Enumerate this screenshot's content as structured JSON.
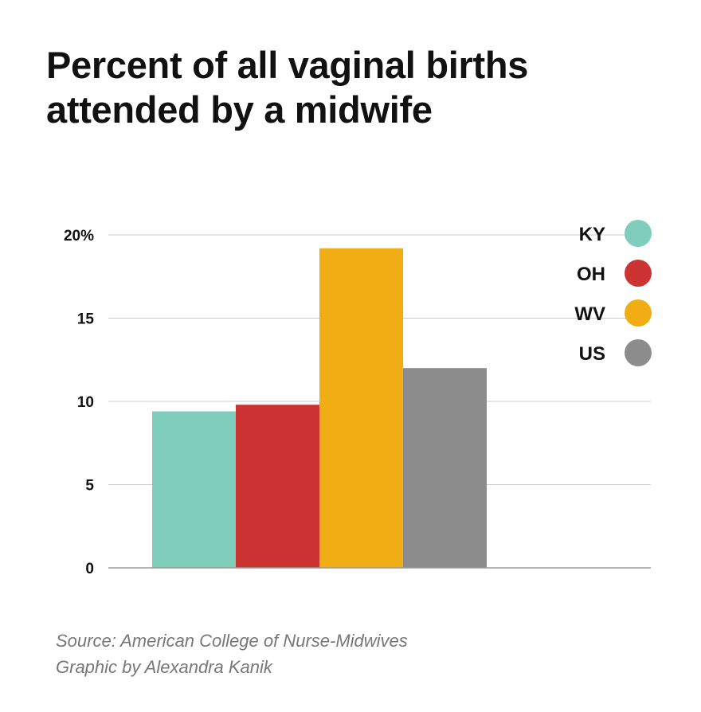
{
  "chart_data": {
    "type": "bar",
    "title": "Percent of all vaginal births attended by a midwife",
    "title_lines": [
      "Percent of all vaginal births",
      "attended by a midwife"
    ],
    "categories": [
      "KY",
      "OH",
      "WV",
      "US"
    ],
    "values": [
      9.4,
      9.8,
      19.2,
      12.0
    ],
    "colors": [
      "#7fcdbb",
      "#cc3333",
      "#f0ad14",
      "#8c8c8c"
    ],
    "ylim": [
      0,
      20
    ],
    "yticks": [
      {
        "value": 0,
        "label": "0"
      },
      {
        "value": 5,
        "label": "5"
      },
      {
        "value": 10,
        "label": "10"
      },
      {
        "value": 15,
        "label": "15"
      },
      {
        "value": 20,
        "label": "20%"
      }
    ],
    "grid": true,
    "legend_position": "top-right",
    "xlabel": "",
    "ylabel": ""
  },
  "footer": {
    "source": "Source: American College of Nurse-Midwives",
    "credit": "Graphic by Alexandra Kanik"
  }
}
